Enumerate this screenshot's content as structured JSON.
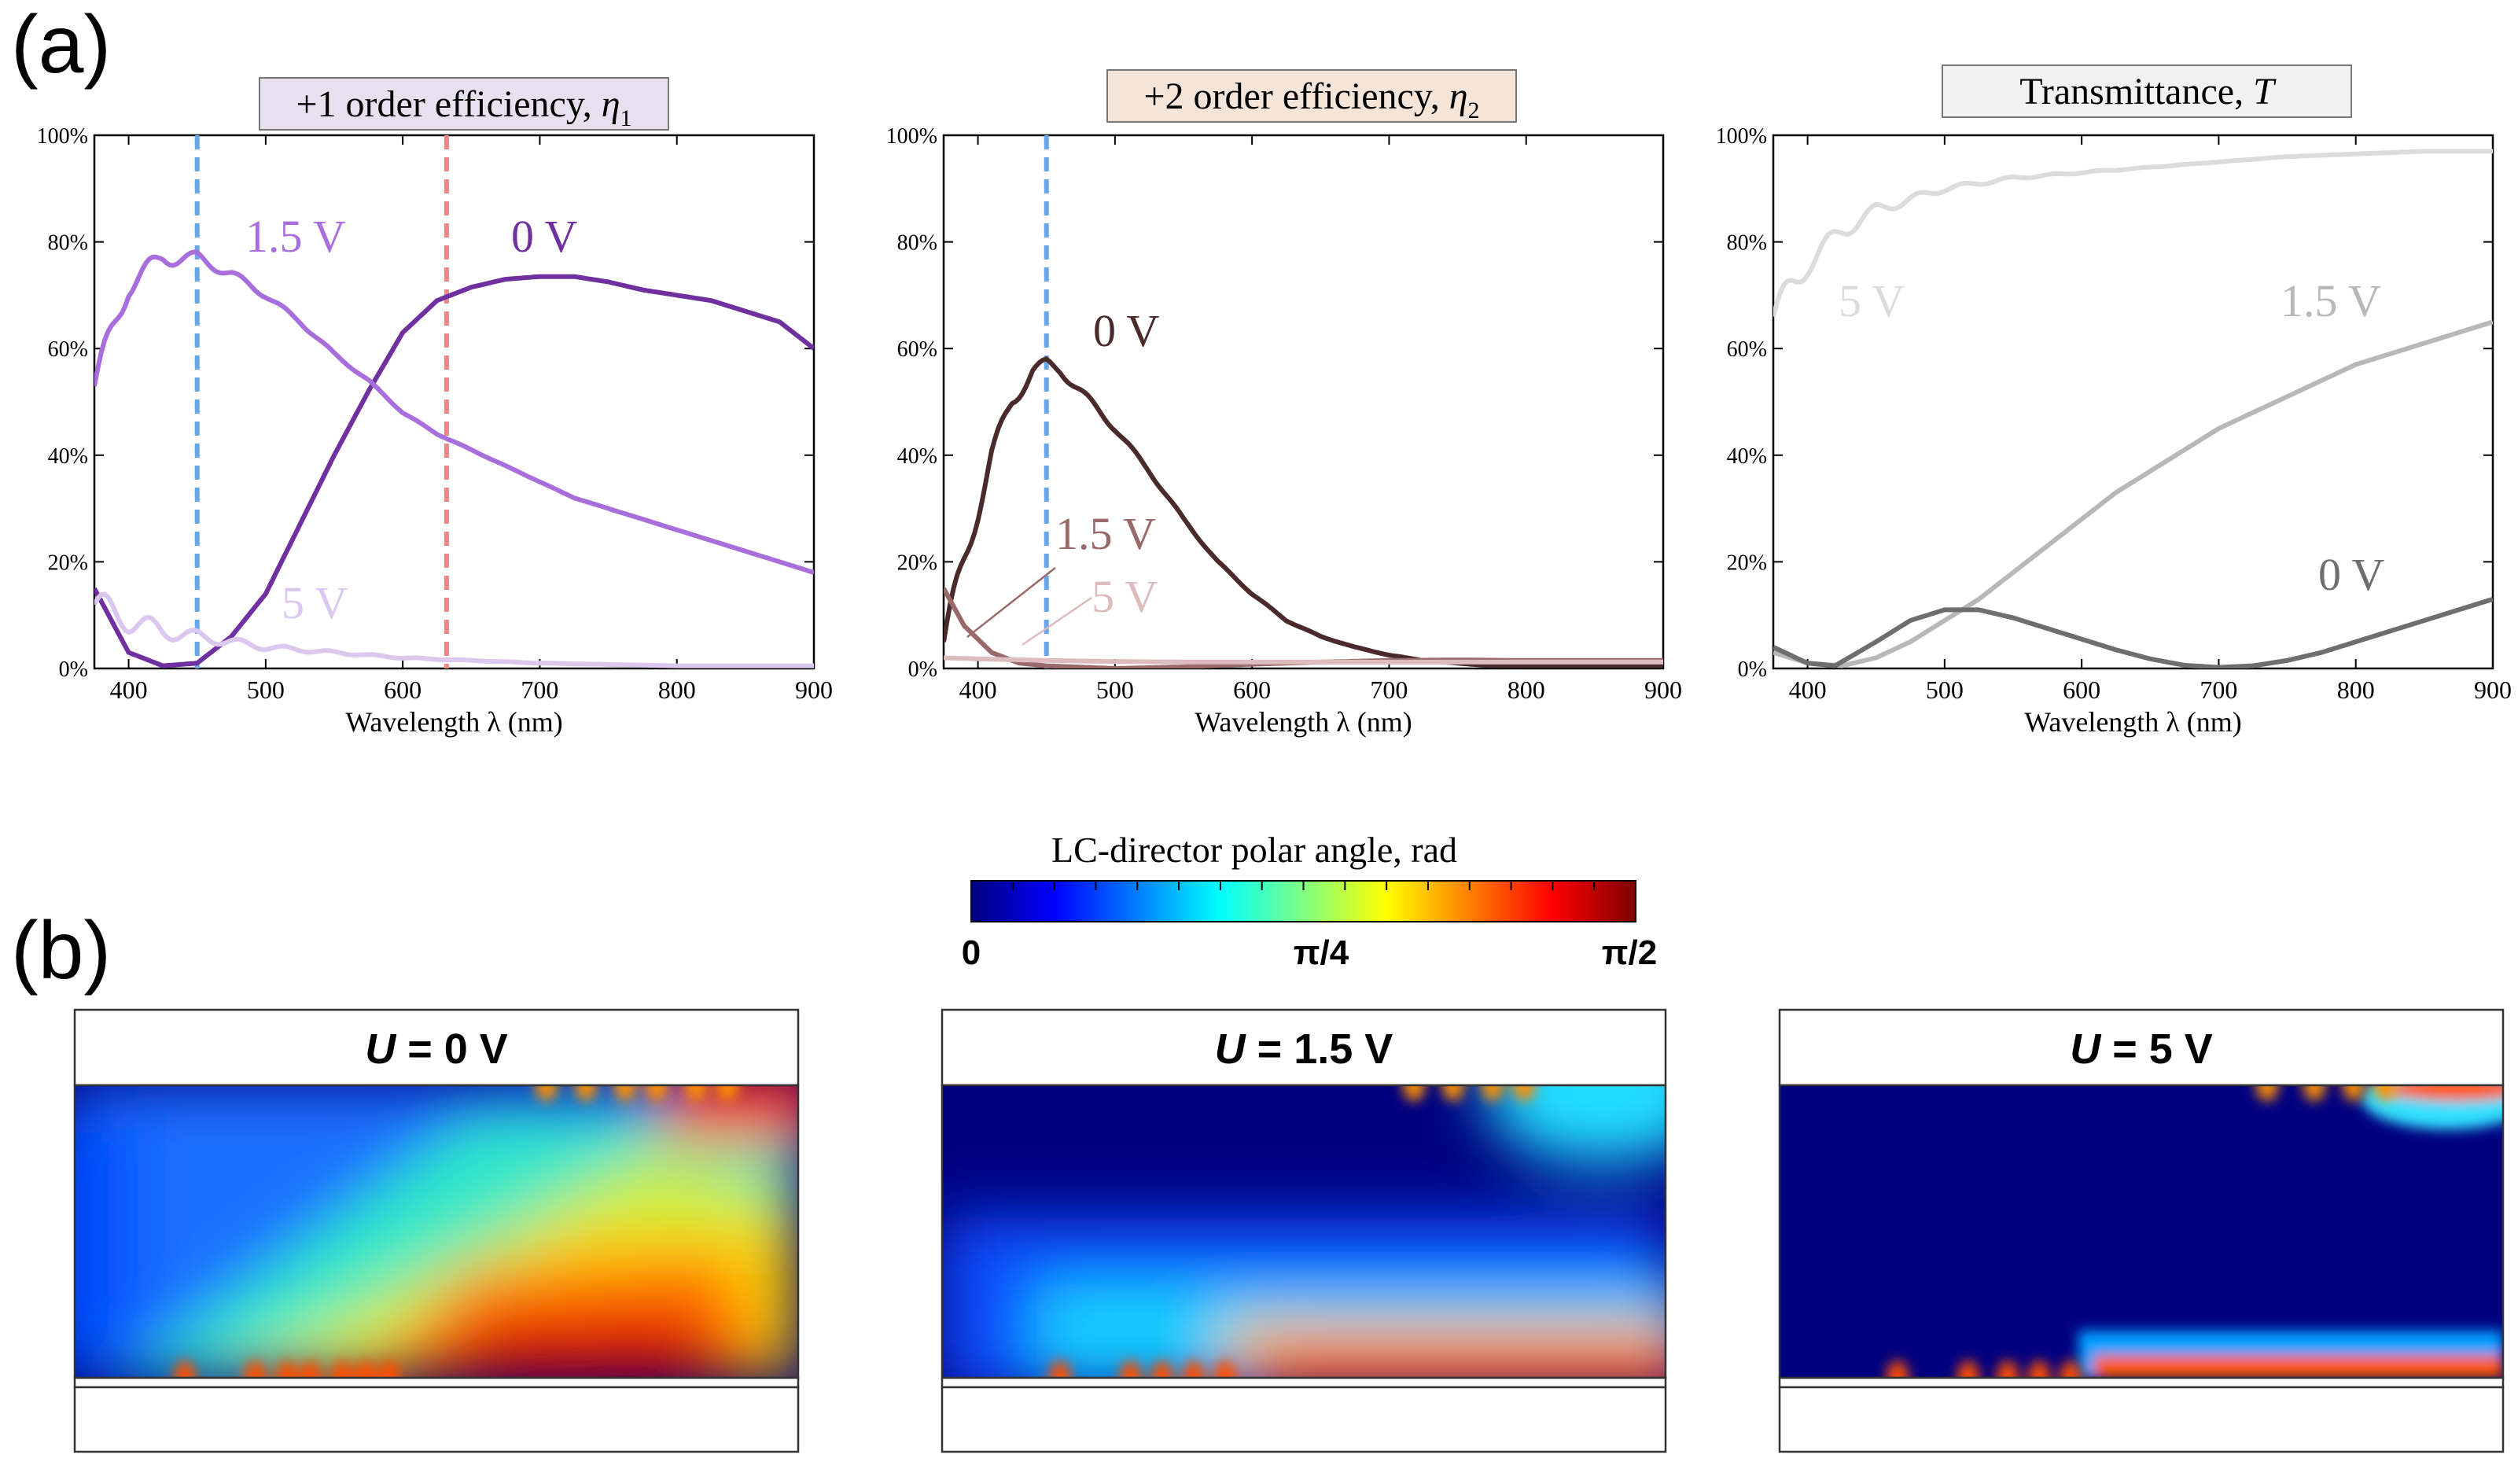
{
  "panel_a_label": "(a)",
  "panel_b_label": "(b)",
  "colors": {
    "purple_dark": "#7030a0",
    "purple_mid": "#a86fdc",
    "purple_light": "#dcc8ee",
    "brown_dark": "#4a2a2a",
    "brown_mid": "#9a6a6a",
    "brown_light": "#dcbcbc",
    "gray_dark": "#6e6e6e",
    "gray_mid": "#b8b8b8",
    "gray_light": "#dcdcdc",
    "marker_blue": "#6aa6ea",
    "marker_red": "#e88a8a",
    "title1_bg": "#e6e0ef",
    "title2_bg": "#f5e4d8",
    "title3_bg": "#f2f2f2"
  },
  "chart_data": [
    {
      "type": "line",
      "title": "+1 order efficiency, ",
      "title_symbol": "η",
      "title_sub": "1",
      "xlabel": "Wavelength λ (nm)",
      "ylabel": "",
      "xlim": [
        375,
        900
      ],
      "ylim": [
        0,
        100
      ],
      "xticks": [
        400,
        500,
        600,
        700,
        800,
        900
      ],
      "yticks": [
        "0%",
        "20%",
        "40%",
        "60%",
        "80%",
        "100%"
      ],
      "markers": [
        {
          "x": 450,
          "color": "#6aa6ea"
        },
        {
          "x": 632,
          "color": "#e88a8a"
        }
      ],
      "series": [
        {
          "name": "0 V",
          "label": "0 V",
          "color": "#7030a0",
          "ripple": false,
          "points": [
            [
              375,
              15
            ],
            [
              400,
              3
            ],
            [
              425,
              0.5
            ],
            [
              450,
              1
            ],
            [
              475,
              6
            ],
            [
              500,
              14
            ],
            [
              525,
              27
            ],
            [
              550,
              40
            ],
            [
              575,
              52
            ],
            [
              600,
              63
            ],
            [
              625,
              69
            ],
            [
              650,
              71.5
            ],
            [
              675,
              73
            ],
            [
              700,
              73.5
            ],
            [
              725,
              73.5
            ],
            [
              750,
              72.5
            ],
            [
              775,
              71
            ],
            [
              800,
              70
            ],
            [
              825,
              69
            ],
            [
              850,
              67
            ],
            [
              875,
              65
            ],
            [
              900,
              60
            ]
          ]
        },
        {
          "name": "1.5 V",
          "label": "1.5 V",
          "color": "#a86fdc",
          "ripple": true,
          "points": [
            [
              375,
              53
            ],
            [
              400,
              72
            ],
            [
              425,
              77
            ],
            [
              450,
              77
            ],
            [
              475,
              74
            ],
            [
              500,
              70
            ],
            [
              525,
              65
            ],
            [
              550,
              59
            ],
            [
              575,
              54
            ],
            [
              600,
              48
            ],
            [
              625,
              44
            ],
            [
              650,
              41
            ],
            [
              675,
              38
            ],
            [
              700,
              35
            ],
            [
              725,
              32
            ],
            [
              750,
              30
            ],
            [
              775,
              28
            ],
            [
              800,
              26
            ],
            [
              825,
              24
            ],
            [
              850,
              22
            ],
            [
              875,
              20
            ],
            [
              900,
              18
            ]
          ]
        },
        {
          "name": "5 V",
          "label": "5 V",
          "color": "#dcc8ee",
          "ripple": true,
          "points": [
            [
              375,
              12
            ],
            [
              400,
              9
            ],
            [
              425,
              7
            ],
            [
              450,
              6
            ],
            [
              475,
              5
            ],
            [
              500,
              4
            ],
            [
              550,
              3
            ],
            [
              600,
              2
            ],
            [
              650,
              1.5
            ],
            [
              700,
              1
            ],
            [
              800,
              0.5
            ],
            [
              900,
              0.5
            ]
          ]
        }
      ]
    },
    {
      "type": "line",
      "title": "+2 order efficiency, ",
      "title_symbol": "η",
      "title_sub": "2",
      "xlabel": "Wavelength λ (nm)",
      "ylabel": "",
      "xlim": [
        375,
        900
      ],
      "ylim": [
        0,
        100
      ],
      "xticks": [
        400,
        500,
        600,
        700,
        800,
        900
      ],
      "yticks": [
        "0%",
        "20%",
        "40%",
        "60%",
        "80%",
        "100%"
      ],
      "markers": [
        {
          "x": 450,
          "color": "#6aa6ea"
        }
      ],
      "series": [
        {
          "name": "0 V",
          "label": "0 V",
          "color": "#4a2a2a",
          "ripple": true,
          "points": [
            [
              375,
              5
            ],
            [
              390,
              20
            ],
            [
              410,
              40
            ],
            [
              425,
              50
            ],
            [
              440,
              56
            ],
            [
              450,
              57
            ],
            [
              460,
              56
            ],
            [
              475,
              52
            ],
            [
              500,
              45
            ],
            [
              525,
              37
            ],
            [
              550,
              28
            ],
            [
              575,
              20
            ],
            [
              600,
              14
            ],
            [
              625,
              9
            ],
            [
              650,
              6
            ],
            [
              675,
              4
            ],
            [
              700,
              2.5
            ],
            [
              725,
              1.5
            ],
            [
              750,
              1
            ],
            [
              775,
              0.5
            ],
            [
              800,
              0.5
            ],
            [
              900,
              0.5
            ]
          ]
        },
        {
          "name": "1.5 V",
          "label": "1.5 V",
          "color": "#9a6a6a",
          "ripple": false,
          "points": [
            [
              375,
              15
            ],
            [
              390,
              8
            ],
            [
              410,
              3
            ],
            [
              430,
              1
            ],
            [
              450,
              0.5
            ],
            [
              500,
              0
            ],
            [
              550,
              0.3
            ],
            [
              600,
              0.8
            ],
            [
              650,
              1.2
            ],
            [
              700,
              1.5
            ],
            [
              750,
              1.6
            ],
            [
              800,
              1.5
            ],
            [
              850,
              1.5
            ],
            [
              900,
              1.5
            ]
          ]
        },
        {
          "name": "5 V",
          "label": "5 V",
          "color": "#dcbcbc",
          "ripple": false,
          "points": [
            [
              375,
              2
            ],
            [
              400,
              1.8
            ],
            [
              450,
              1.5
            ],
            [
              500,
              1.3
            ],
            [
              550,
              1.2
            ],
            [
              600,
              1.2
            ],
            [
              700,
              1.2
            ],
            [
              800,
              1.2
            ],
            [
              900,
              1.2
            ]
          ]
        }
      ]
    },
    {
      "type": "line",
      "title": "Transmittance, ",
      "title_symbol": "T",
      "title_sub": "",
      "xlabel": "Wavelength λ (nm)",
      "ylabel": "",
      "xlim": [
        375,
        900
      ],
      "ylim": [
        0,
        100
      ],
      "xticks": [
        400,
        500,
        600,
        700,
        800,
        900
      ],
      "yticks": [
        "0%",
        "20%",
        "40%",
        "60%",
        "80%",
        "100%"
      ],
      "markers": [],
      "series": [
        {
          "name": "5 V",
          "label": "5 V",
          "color": "#dcdcdc",
          "ripple": true,
          "points": [
            [
              375,
              66
            ],
            [
              400,
              76
            ],
            [
              425,
              82
            ],
            [
              450,
              86
            ],
            [
              475,
              88
            ],
            [
              500,
              90
            ],
            [
              550,
              92
            ],
            [
              600,
              93
            ],
            [
              650,
              94
            ],
            [
              700,
              95
            ],
            [
              750,
              96
            ],
            [
              800,
              96.5
            ],
            [
              850,
              97
            ],
            [
              900,
              97
            ]
          ]
        },
        {
          "name": "1.5 V",
          "label": "1.5 V",
          "color": "#b8b8b8",
          "ripple": false,
          "points": [
            [
              375,
              3
            ],
            [
              400,
              1
            ],
            [
              425,
              0.5
            ],
            [
              450,
              2
            ],
            [
              475,
              5
            ],
            [
              500,
              9
            ],
            [
              525,
              13
            ],
            [
              550,
              18
            ],
            [
              575,
              23
            ],
            [
              600,
              28
            ],
            [
              625,
              33
            ],
            [
              650,
              37
            ],
            [
              675,
              41
            ],
            [
              700,
              45
            ],
            [
              725,
              48
            ],
            [
              750,
              51
            ],
            [
              775,
              54
            ],
            [
              800,
              57
            ],
            [
              825,
              59
            ],
            [
              850,
              61
            ],
            [
              875,
              63
            ],
            [
              900,
              65
            ]
          ]
        },
        {
          "name": "0 V",
          "label": "0 V",
          "color": "#6e6e6e",
          "ripple": false,
          "points": [
            [
              375,
              4
            ],
            [
              400,
              1
            ],
            [
              420,
              0.5
            ],
            [
              450,
              5
            ],
            [
              475,
              9
            ],
            [
              500,
              11
            ],
            [
              525,
              11
            ],
            [
              550,
              9.5
            ],
            [
              575,
              7.5
            ],
            [
              600,
              5.5
            ],
            [
              625,
              3.5
            ],
            [
              650,
              1.8
            ],
            [
              675,
              0.6
            ],
            [
              700,
              0.2
            ],
            [
              725,
              0.5
            ],
            [
              750,
              1.5
            ],
            [
              775,
              3
            ],
            [
              800,
              5
            ],
            [
              825,
              7
            ],
            [
              850,
              9
            ],
            [
              875,
              11
            ],
            [
              900,
              13
            ]
          ]
        }
      ]
    }
  ],
  "colorbar": {
    "title": "LC-director polar angle, rad",
    "ticks": [
      "0",
      "π/4",
      "π/2"
    ],
    "gradient": [
      "#00007f",
      "#0000ff",
      "#007fff",
      "#00ffff",
      "#7fff7f",
      "#ffff00",
      "#ff7f00",
      "#ff0000",
      "#7f0000"
    ]
  },
  "maps": [
    {
      "label_var": "U",
      "label_rest": " = 0 V",
      "variant": "0V"
    },
    {
      "label_var": "U",
      "label_rest": " = 1.5 V",
      "variant": "1.5V"
    },
    {
      "label_var": "U",
      "label_rest": " = 5 V",
      "variant": "5V"
    }
  ]
}
